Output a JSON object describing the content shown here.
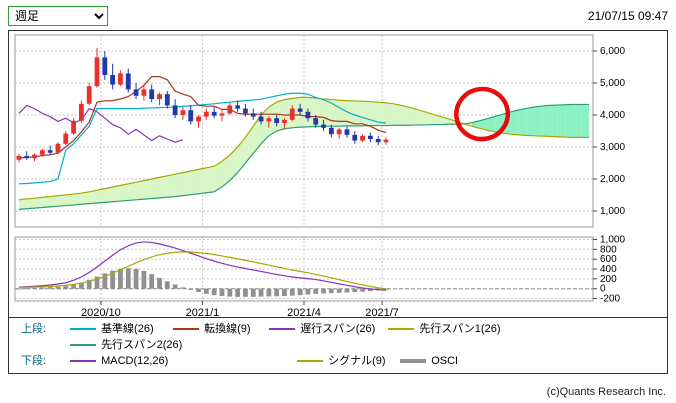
{
  "controls": {
    "timeframe_selected": "週足"
  },
  "header": {
    "timestamp": "21/07/15 09:47"
  },
  "footer": {
    "copyright": "(c)Quants Research Inc."
  },
  "legend": {
    "upper_label": "上段:",
    "lower_label": "下段:",
    "upper_items": [
      {
        "label": "基準線(26)",
        "color": "#00b0c8"
      },
      {
        "label": "転換線(9)",
        "color": "#aa3322"
      },
      {
        "label": "遅行スパン(26)",
        "color": "#8833bb"
      },
      {
        "label": "先行スパン1(26)",
        "color": "#a8a800"
      },
      {
        "label": "先行スパン2(26)",
        "color": "#2e9e78"
      }
    ],
    "lower_items": [
      {
        "label": "MACD(12,26)",
        "color": "#8833bb"
      },
      {
        "label": "シグナル(9)",
        "color": "#a8a800"
      },
      {
        "label": "OSCI",
        "color": "#909090"
      }
    ]
  },
  "chart_data": [
    {
      "type": "candlestick",
      "title": "",
      "timeframe": "weekly",
      "timeline_weeks": 74,
      "ylim": [
        500,
        6500
      ],
      "y_ticks": [
        1000,
        2000,
        3000,
        4000,
        5000,
        6000
      ],
      "x_tick_labels": [
        "2020/10",
        "2021/1",
        "2021/4",
        "2021/7"
      ],
      "x_tick_weeks": [
        10.5,
        23.5,
        36.5,
        46.5
      ],
      "layout": {
        "grid": true,
        "legend_position": "bottom-left",
        "y_axis": "right"
      },
      "up_color": "#e8312f",
      "down_color": "#2038a8",
      "cloud": {
        "fill_bullish": "#d8f6c6",
        "fill_bearish": "#8cf2c4"
      },
      "candles_ohlc": [
        [
          2600,
          2780,
          2520,
          2720
        ],
        [
          2720,
          2870,
          2600,
          2650
        ],
        [
          2650,
          2800,
          2560,
          2760
        ],
        [
          2760,
          2950,
          2700,
          2900
        ],
        [
          2900,
          3050,
          2750,
          2820
        ],
        [
          2820,
          3150,
          2780,
          3100
        ],
        [
          3100,
          3500,
          3050,
          3420
        ],
        [
          3420,
          3900,
          3380,
          3820
        ],
        [
          3820,
          4450,
          3750,
          4350
        ],
        [
          4350,
          5000,
          4300,
          4900
        ],
        [
          4900,
          6100,
          4850,
          5800
        ],
        [
          5800,
          6000,
          5100,
          5250
        ],
        [
          5250,
          5600,
          4800,
          4950
        ],
        [
          4950,
          5400,
          4900,
          5300
        ],
        [
          5300,
          5450,
          4700,
          4800
        ],
        [
          4800,
          5000,
          4500,
          4600
        ],
        [
          4600,
          4900,
          4450,
          4800
        ],
        [
          4800,
          4950,
          4400,
          4500
        ],
        [
          4500,
          4700,
          4300,
          4650
        ],
        [
          4650,
          4750,
          4200,
          4300
        ],
        [
          4300,
          4500,
          3900,
          4000
        ],
        [
          4000,
          4250,
          3850,
          4150
        ],
        [
          4150,
          4300,
          3700,
          3800
        ],
        [
          3800,
          4000,
          3600,
          3950
        ],
        [
          3950,
          4200,
          3850,
          4100
        ],
        [
          4100,
          4250,
          3900,
          3980
        ],
        [
          3980,
          4150,
          3800,
          4050
        ],
        [
          4050,
          4400,
          4000,
          4300
        ],
        [
          4300,
          4450,
          4100,
          4200
        ],
        [
          4200,
          4350,
          3950,
          4050
        ],
        [
          4050,
          4200,
          3850,
          3950
        ],
        [
          3950,
          4100,
          3700,
          3800
        ],
        [
          3800,
          3950,
          3600,
          3900
        ],
        [
          3900,
          4000,
          3650,
          3750
        ],
        [
          3750,
          3900,
          3550,
          3850
        ],
        [
          3850,
          4300,
          3800,
          4200
        ],
        [
          4200,
          4350,
          4000,
          4100
        ],
        [
          4100,
          4200,
          3800,
          3900
        ],
        [
          3900,
          4000,
          3600,
          3700
        ],
        [
          3700,
          3850,
          3500,
          3600
        ],
        [
          3600,
          3700,
          3300,
          3400
        ],
        [
          3400,
          3600,
          3250,
          3550
        ],
        [
          3550,
          3650,
          3300,
          3380
        ],
        [
          3380,
          3500,
          3100,
          3200
        ],
        [
          3200,
          3400,
          3150,
          3350
        ],
        [
          3350,
          3450,
          3150,
          3250
        ],
        [
          3250,
          3350,
          3050,
          3150
        ],
        [
          3150,
          3300,
          3070,
          3230
        ]
      ],
      "overlays": {
        "kijun": {
          "label": "基準線(26)",
          "color": "#00b0c8",
          "start_week": 0,
          "values": [
            1850,
            1860,
            1880,
            1900,
            1920,
            2000,
            2900,
            3100,
            3375,
            3650,
            4200,
            4200,
            4200,
            4200,
            4200,
            4200,
            4210,
            4220,
            4230,
            4240,
            4250,
            4270,
            4290,
            4310,
            4330,
            4350,
            4380,
            4400,
            4425,
            4450,
            4470,
            4490,
            4550,
            4600,
            4650,
            4680,
            4680,
            4650,
            4550,
            4480,
            4375,
            4230,
            4100,
            4000,
            3925,
            3850,
            3775,
            3750
          ]
        },
        "tenkan": {
          "label": "転換線(9)",
          "color": "#aa3322",
          "start_week": 0,
          "values": [
            2650,
            2680,
            2690,
            2735,
            2755,
            2805,
            3000,
            3200,
            3475,
            3775,
            4400,
            4440,
            4450,
            4500,
            4575,
            4740,
            4925,
            5200,
            5200,
            5100,
            4750,
            4650,
            4575,
            4300,
            4275,
            4275,
            4175,
            4175,
            4050,
            4025,
            4025,
            4025,
            4025,
            4025,
            4000,
            4000,
            4000,
            3950,
            3950,
            3925,
            3825,
            3800,
            3800,
            3725,
            3725,
            3650,
            3525,
            3450
          ]
        },
        "chikou": {
          "label": "遅行スパン(26)",
          "color": "#8833bb",
          "start_week": 0,
          "values": [
            4050,
            4300,
            4200,
            4050,
            3950,
            3800,
            3900,
            3750,
            3850,
            4200,
            4100,
            3900,
            3700,
            3600,
            3400,
            3550,
            3380,
            3200,
            3350,
            3250,
            3150,
            3230
          ]
        },
        "senko_a": {
          "label": "先行スパン1(26)",
          "color": "#a8a800",
          "start_week": 0,
          "values": [
            1350,
            1380,
            1400,
            1430,
            1450,
            1480,
            1500,
            1530,
            1560,
            1600,
            1650,
            1700,
            1750,
            1800,
            1850,
            1900,
            1950,
            2000,
            2050,
            2100,
            2150,
            2200,
            2250,
            2300,
            2350,
            2400,
            2550,
            2750,
            3000,
            3300,
            3650,
            4000,
            4250,
            4400,
            4480,
            4520,
            4550,
            4550,
            4530,
            4500,
            4480,
            4460,
            4450,
            4440,
            4430,
            4420,
            4400,
            4380,
            4350,
            4300,
            4240,
            4170,
            4100,
            4020,
            3950,
            3880,
            3800,
            3720,
            3650,
            3580,
            3520,
            3470,
            3430,
            3400,
            3380,
            3360,
            3350,
            3340,
            3330,
            3320,
            3310,
            3300,
            3300,
            3300
          ]
        },
        "senko_b": {
          "label": "先行スパン2(26)",
          "color": "#2e9e78",
          "start_week": 0,
          "values": [
            1050,
            1070,
            1090,
            1110,
            1130,
            1150,
            1170,
            1190,
            1210,
            1230,
            1250,
            1270,
            1290,
            1310,
            1330,
            1350,
            1370,
            1390,
            1410,
            1430,
            1450,
            1480,
            1510,
            1540,
            1570,
            1600,
            1750,
            1950,
            2200,
            2500,
            2800,
            3100,
            3350,
            3500,
            3570,
            3600,
            3620,
            3630,
            3640,
            3650,
            3650,
            3650,
            3660,
            3660,
            3660,
            3670,
            3670,
            3670,
            3680,
            3680,
            3680,
            3690,
            3690,
            3700,
            3700,
            3710,
            3710,
            3720,
            3760,
            3820,
            3890,
            3960,
            4030,
            4100,
            4160,
            4210,
            4250,
            4280,
            4300,
            4310,
            4320,
            4330,
            4330,
            4330
          ]
        }
      },
      "annotations": [
        {
          "shape": "ellipse",
          "week": 59.3,
          "value": 4030,
          "rx_weeks": 3.3,
          "ry_value": 780,
          "color": "#e60000",
          "stroke_width": 4.5,
          "note": "hand-drawn circle on kumo twist"
        }
      ]
    },
    {
      "type": "bar",
      "title": "",
      "ylim": [
        -250,
        1050
      ],
      "y_ticks": [
        1000,
        800,
        600,
        400,
        200,
        0,
        -200
      ],
      "series": [
        {
          "name": "MACD(12,26)",
          "type": "line",
          "color": "#8833bb",
          "values": [
            30,
            40,
            50,
            60,
            75,
            95,
            120,
            170,
            240,
            330,
            440,
            560,
            680,
            790,
            870,
            930,
            950,
            940,
            910,
            870,
            825,
            775,
            720,
            665,
            610,
            560,
            515,
            475,
            440,
            410,
            380,
            350,
            320,
            290,
            262,
            238,
            220,
            205,
            185,
            160,
            130,
            98,
            68,
            40,
            15,
            -5,
            -20,
            -30
          ]
        },
        {
          "name": "シグナル(9)",
          "type": "line",
          "color": "#a8a800",
          "values": [
            25,
            28,
            32,
            38,
            45,
            55,
            68,
            88,
            115,
            150,
            195,
            250,
            315,
            385,
            455,
            525,
            590,
            645,
            690,
            720,
            740,
            748,
            745,
            733,
            715,
            692,
            665,
            636,
            606,
            575,
            545,
            512,
            478,
            445,
            412,
            380,
            352,
            322,
            290,
            256,
            220,
            183,
            146,
            110,
            76,
            45,
            18,
            -2
          ]
        },
        {
          "name": "OSCI",
          "type": "bar",
          "color": "#909090",
          "values": [
            5,
            12,
            18,
            22,
            30,
            40,
            52,
            82,
            125,
            180,
            245,
            310,
            365,
            405,
            415,
            405,
            360,
            295,
            220,
            150,
            85,
            27,
            -25,
            -68,
            -105,
            -132,
            -150,
            -161,
            -166,
            -165,
            -165,
            -162,
            -158,
            -155,
            -150,
            -142,
            -132,
            -117,
            -105,
            -96,
            -90,
            -85,
            -78,
            -70,
            -61,
            -50,
            -38,
            -28
          ]
        }
      ]
    }
  ]
}
